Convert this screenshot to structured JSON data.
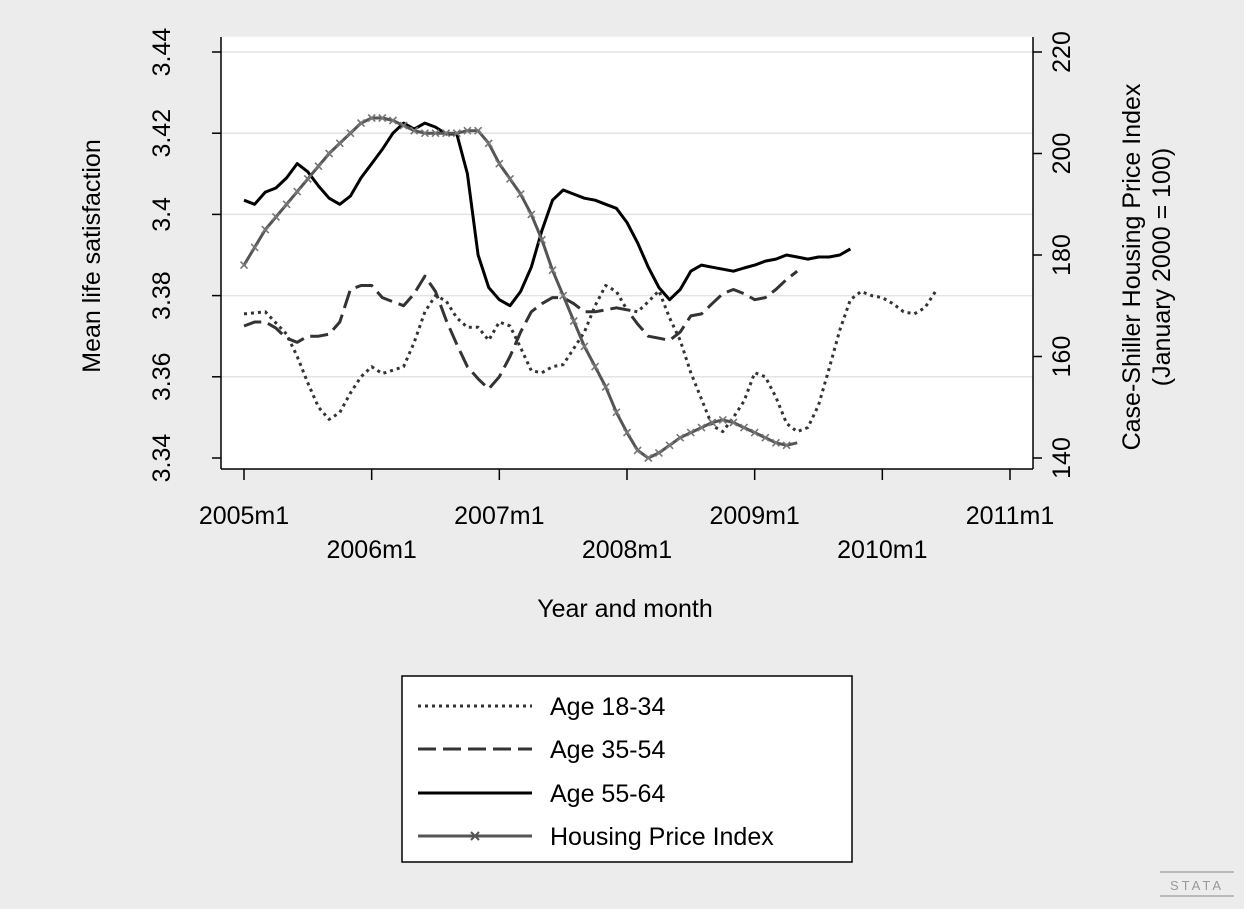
{
  "chart_data": {
    "type": "line",
    "title": "",
    "xlabel": "Year and month",
    "ylabel_left": "Mean life satisfaction",
    "ylabel_right_line1": "Case-Shiller Housing Price Index",
    "ylabel_right_line2": "(January 2000 = 100)",
    "xlim": [
      0,
      72
    ],
    "ylim_left": [
      3.34,
      3.44
    ],
    "ylim_right": [
      140,
      220
    ],
    "x_ticks": [
      {
        "x": 0,
        "label": "2005m1"
      },
      {
        "x": 12,
        "label": "2006m1"
      },
      {
        "x": 24,
        "label": "2007m1"
      },
      {
        "x": 36,
        "label": "2008m1"
      },
      {
        "x": 48,
        "label": "2009m1"
      },
      {
        "x": 60,
        "label": "2010m1"
      },
      {
        "x": 72,
        "label": "2011m1"
      }
    ],
    "y_left_ticks": [
      "3.34",
      "3.36",
      "3.38",
      "3.4",
      "3.42",
      "3.44"
    ],
    "y_right_ticks": [
      "140",
      "160",
      "180",
      "200",
      "220"
    ],
    "grid": true,
    "legend_position": "bottom",
    "series": [
      {
        "name": "Age 18-34",
        "axis": "left",
        "style": "dotted",
        "points": [
          [
            0,
            3.3755
          ],
          [
            2,
            3.376
          ],
          [
            4,
            3.3705
          ],
          [
            5,
            3.365
          ],
          [
            6,
            3.3585
          ],
          [
            7,
            3.3525
          ],
          [
            8,
            3.3495
          ],
          [
            9,
            3.3512
          ],
          [
            10,
            3.356
          ],
          [
            11,
            3.36
          ],
          [
            12,
            3.3625
          ],
          [
            13,
            3.3608
          ],
          [
            15,
            3.3625
          ],
          [
            16,
            3.3685
          ],
          [
            17,
            3.376
          ],
          [
            18,
            3.38
          ],
          [
            19,
            3.3787
          ],
          [
            20,
            3.3745
          ],
          [
            21,
            3.3722
          ],
          [
            22,
            3.3722
          ],
          [
            23,
            3.369
          ],
          [
            24,
            3.3735
          ],
          [
            25,
            3.3725
          ],
          [
            26,
            3.3672
          ],
          [
            27,
            3.3615
          ],
          [
            28,
            3.361
          ],
          [
            29,
            3.3625
          ],
          [
            30,
            3.363
          ],
          [
            31,
            3.367
          ],
          [
            32,
            3.371
          ],
          [
            33,
            3.3775
          ],
          [
            34,
            3.3825
          ],
          [
            35,
            3.381
          ],
          [
            36,
            3.3765
          ],
          [
            37,
            3.376
          ],
          [
            38,
            3.3785
          ],
          [
            39,
            3.3812
          ],
          [
            40,
            3.3745
          ],
          [
            41,
            3.369
          ],
          [
            42,
            3.361
          ],
          [
            43,
            3.3545
          ],
          [
            44,
            3.348
          ],
          [
            45,
            3.3465
          ],
          [
            46,
            3.35
          ],
          [
            47,
            3.354
          ],
          [
            48,
            3.361
          ],
          [
            49,
            3.36
          ],
          [
            50,
            3.355
          ],
          [
            51,
            3.3485
          ],
          [
            52,
            3.3465
          ],
          [
            53,
            3.3475
          ],
          [
            54,
            3.353
          ],
          [
            55,
            3.362
          ],
          [
            56,
            3.3715
          ],
          [
            57,
            3.379
          ],
          [
            58,
            3.381
          ],
          [
            59,
            3.38
          ],
          [
            60,
            3.3795
          ],
          [
            61,
            3.378
          ],
          [
            62,
            3.376
          ],
          [
            63,
            3.3755
          ],
          [
            64,
            3.377
          ],
          [
            65,
            3.381
          ]
        ]
      },
      {
        "name": "Age 35-54",
        "axis": "left",
        "style": "dashed",
        "points": [
          [
            0,
            3.3725
          ],
          [
            1,
            3.3735
          ],
          [
            2,
            3.3735
          ],
          [
            3,
            3.372
          ],
          [
            4,
            3.3695
          ],
          [
            5,
            3.3685
          ],
          [
            6,
            3.37
          ],
          [
            7,
            3.37
          ],
          [
            8,
            3.3705
          ],
          [
            9,
            3.3735
          ],
          [
            10,
            3.3815
          ],
          [
            11,
            3.3825
          ],
          [
            12,
            3.3825
          ],
          [
            13,
            3.3795
          ],
          [
            14,
            3.3785
          ],
          [
            15,
            3.3775
          ],
          [
            16,
            3.3805
          ],
          [
            17,
            3.3848
          ],
          [
            18,
            3.381
          ],
          [
            19,
            3.374
          ],
          [
            20,
            3.368
          ],
          [
            21,
            3.3625
          ],
          [
            22,
            3.3595
          ],
          [
            23,
            3.357
          ],
          [
            24,
            3.36
          ],
          [
            25,
            3.365
          ],
          [
            26,
            3.371
          ],
          [
            27,
            3.376
          ],
          [
            28,
            3.378
          ],
          [
            29,
            3.3795
          ],
          [
            30,
            3.3795
          ],
          [
            31,
            3.378
          ],
          [
            32,
            3.376
          ],
          [
            33,
            3.376
          ],
          [
            34,
            3.3765
          ],
          [
            35,
            3.377
          ],
          [
            36,
            3.3765
          ],
          [
            37,
            3.373
          ],
          [
            38,
            3.37
          ],
          [
            39,
            3.3695
          ],
          [
            40,
            3.369
          ],
          [
            41,
            3.371
          ],
          [
            42,
            3.375
          ],
          [
            43,
            3.3755
          ],
          [
            44,
            3.378
          ],
          [
            45,
            3.3805
          ],
          [
            46,
            3.3815
          ],
          [
            47,
            3.3805
          ],
          [
            48,
            3.379
          ],
          [
            49,
            3.3795
          ],
          [
            50,
            3.3815
          ],
          [
            51,
            3.384
          ],
          [
            52,
            3.386
          ]
        ]
      },
      {
        "name": "Age 55-64",
        "axis": "left",
        "style": "solid",
        "points": [
          [
            0,
            3.4035
          ],
          [
            1,
            3.4025
          ],
          [
            2,
            3.4055
          ],
          [
            3,
            3.4065
          ],
          [
            4,
            3.409
          ],
          [
            5,
            3.4125
          ],
          [
            6,
            3.4105
          ],
          [
            7,
            3.407
          ],
          [
            8,
            3.404
          ],
          [
            9,
            3.4025
          ],
          [
            10,
            3.4045
          ],
          [
            11,
            3.409
          ],
          [
            12,
            3.4125
          ],
          [
            13,
            3.416
          ],
          [
            14,
            3.42
          ],
          [
            15,
            3.4225
          ],
          [
            16,
            3.421
          ],
          [
            17,
            3.4225
          ],
          [
            18,
            3.4215
          ],
          [
            19,
            3.4198
          ],
          [
            20,
            3.4198
          ],
          [
            21,
            3.41
          ],
          [
            22,
            3.39
          ],
          [
            23,
            3.382
          ],
          [
            24,
            3.379
          ],
          [
            25,
            3.3775
          ],
          [
            26,
            3.381
          ],
          [
            27,
            3.387
          ],
          [
            28,
            3.396
          ],
          [
            29,
            3.4035
          ],
          [
            30,
            3.406
          ],
          [
            31,
            3.405
          ],
          [
            32,
            3.404
          ],
          [
            33,
            3.4035
          ],
          [
            34,
            3.4025
          ],
          [
            35,
            3.4015
          ],
          [
            36,
            3.398
          ],
          [
            37,
            3.393
          ],
          [
            38,
            3.387
          ],
          [
            39,
            3.382
          ],
          [
            40,
            3.379
          ],
          [
            41,
            3.3815
          ],
          [
            42,
            3.386
          ],
          [
            43,
            3.3875
          ],
          [
            44,
            3.387
          ],
          [
            45,
            3.3865
          ],
          [
            46,
            3.386
          ],
          [
            47,
            3.3868
          ],
          [
            48,
            3.3875
          ],
          [
            49,
            3.3885
          ],
          [
            50,
            3.389
          ],
          [
            51,
            3.39
          ],
          [
            52,
            3.3895
          ],
          [
            53,
            3.389
          ],
          [
            54,
            3.3895
          ],
          [
            55,
            3.3895
          ],
          [
            56,
            3.39
          ],
          [
            57,
            3.3915
          ]
        ]
      },
      {
        "name": "Housing Price Index",
        "axis": "right",
        "style": "solid-marked",
        "points": [
          [
            0,
            178
          ],
          [
            2,
            185
          ],
          [
            4,
            190
          ],
          [
            6,
            195
          ],
          [
            8,
            200
          ],
          [
            10,
            204
          ],
          [
            11,
            206
          ],
          [
            12,
            207
          ],
          [
            13,
            207
          ],
          [
            14,
            206.5
          ],
          [
            15,
            205.5
          ],
          [
            16,
            204.5
          ],
          [
            17,
            204
          ],
          [
            18,
            204
          ],
          [
            19,
            204
          ],
          [
            20,
            204
          ],
          [
            21,
            204.5
          ],
          [
            22,
            204.5
          ],
          [
            23,
            202
          ],
          [
            24,
            198
          ],
          [
            25,
            195
          ],
          [
            26,
            192
          ],
          [
            27,
            188
          ],
          [
            28,
            183
          ],
          [
            29,
            177
          ],
          [
            30,
            172
          ],
          [
            31,
            167
          ],
          [
            32,
            162
          ],
          [
            33,
            158
          ],
          [
            34,
            154
          ],
          [
            35,
            149
          ],
          [
            36,
            145
          ],
          [
            37,
            141.5
          ],
          [
            38,
            140
          ],
          [
            39,
            141
          ],
          [
            40,
            142.5
          ],
          [
            41,
            144
          ],
          [
            42,
            145
          ],
          [
            43,
            146
          ],
          [
            44,
            147
          ],
          [
            45,
            147.5
          ],
          [
            46,
            147
          ],
          [
            47,
            146
          ],
          [
            48,
            145
          ],
          [
            49,
            144
          ],
          [
            50,
            143
          ],
          [
            51,
            142.5
          ],
          [
            52,
            143
          ]
        ]
      }
    ]
  }
}
